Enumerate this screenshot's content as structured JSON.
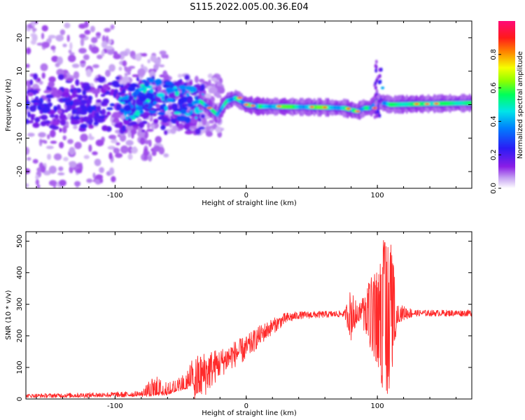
{
  "title": "S115.2022.005.00.36.E04",
  "chart_data": [
    {
      "type": "heatmap",
      "xlabel": "Height of straight line (km)",
      "ylabel": "Frequency (Hz)",
      "xlim": [
        -168,
        172
      ],
      "ylim": [
        -25,
        25
      ],
      "xticks": [
        -100,
        0,
        100
      ],
      "yticks": [
        -20,
        -10,
        0,
        10,
        20
      ],
      "colorbar": {
        "label": "Normalized spectral amplitude",
        "range": [
          0,
          1
        ],
        "ticks": [
          "0.0",
          "0.2",
          "0.4",
          "0.6",
          "0.8"
        ],
        "colormap": "rainbow: purple-blue-cyan-green-yellow-red-magenta"
      },
      "ridge": {
        "description": "frequency centre of strongest signal vs height",
        "x": [
          -168,
          -140,
          -110,
          -90,
          -75,
          -60,
          -45,
          -35,
          -28,
          -22,
          -15,
          -8,
          0,
          10,
          30,
          60,
          75,
          85,
          90,
          95,
          100,
          110,
          130,
          172
        ],
        "y": [
          0,
          0,
          0,
          0,
          3,
          2,
          0,
          1,
          -1,
          -3,
          1,
          2,
          0,
          -0.5,
          -0.6,
          -0.8,
          -1,
          -2,
          -1,
          -1,
          1,
          0,
          0.2,
          0.5
        ]
      }
    },
    {
      "type": "line",
      "xlabel": "Height of straight line (km)",
      "ylabel": "SNR (10 * v/v)",
      "xlim": [
        -168,
        172
      ],
      "ylim": [
        0,
        530
      ],
      "xticks": [
        -100,
        0,
        100
      ],
      "yticks": [
        0,
        100,
        200,
        300,
        400,
        500
      ],
      "color": "#ff2a2a",
      "trend": {
        "x": [
          -168,
          -120,
          -80,
          -60,
          -45,
          -35,
          -25,
          -10,
          0,
          10,
          20,
          30,
          40,
          60,
          80,
          100,
          120,
          150,
          172
        ],
        "y": [
          10,
          12,
          15,
          20,
          40,
          70,
          100,
          140,
          160,
          200,
          230,
          255,
          265,
          268,
          270,
          270,
          272,
          272,
          272
        ]
      },
      "noise_amplitude": {
        "x": [
          -168,
          -80,
          -70,
          -60,
          -50,
          -40,
          -30,
          -20,
          0,
          20,
          40,
          75,
          80,
          85,
          90,
          95,
          100,
          105,
          110,
          115,
          130,
          172
        ],
        "y": [
          6,
          10,
          60,
          30,
          40,
          80,
          70,
          45,
          40,
          25,
          12,
          10,
          90,
          20,
          60,
          120,
          160,
          260,
          250,
          30,
          10,
          10
        ]
      }
    }
  ]
}
